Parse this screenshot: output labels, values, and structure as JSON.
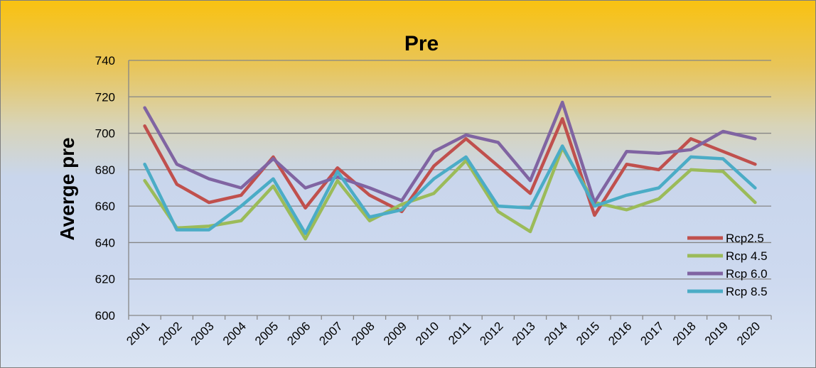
{
  "chart_data": {
    "type": "line",
    "title": "Pre",
    "xlabel": "",
    "ylabel": "Averge pre",
    "ylim": [
      600,
      740
    ],
    "yticks": [
      "600",
      "620",
      "640",
      "660",
      "680",
      "700",
      "720",
      "740"
    ],
    "grid": true,
    "legend": "bottom-right",
    "categories": [
      "2001",
      "2002",
      "2003",
      "2004",
      "2005",
      "2006",
      "2007",
      "2008",
      "2009",
      "2010",
      "2011",
      "2012",
      "2013",
      "2014",
      "2015",
      "2016",
      "2017",
      "2018",
      "2019",
      "2020"
    ],
    "series": [
      {
        "name": "Rcp2.5",
        "color": "#c0504d",
        "values": [
          704,
          672,
          662,
          666,
          687,
          659,
          681,
          666,
          657,
          682,
          697,
          682,
          667,
          708,
          655,
          683,
          680,
          697,
          690,
          683
        ]
      },
      {
        "name": "Rcp 4.5",
        "color": "#9bbb59",
        "values": [
          674,
          648,
          649,
          652,
          671,
          642,
          674,
          652,
          661,
          667,
          685,
          657,
          646,
          692,
          662,
          658,
          664,
          680,
          679,
          662
        ]
      },
      {
        "name": "Rcp 6.0",
        "color": "#8064a2",
        "values": [
          714,
          683,
          675,
          670,
          686,
          670,
          676,
          670,
          663,
          690,
          699,
          695,
          674,
          717,
          662,
          690,
          689,
          691,
          701,
          697
        ]
      },
      {
        "name": "Rcp 8.5",
        "color": "#4bacc6",
        "values": [
          683,
          647,
          647,
          660,
          675,
          645,
          679,
          654,
          658,
          675,
          687,
          660,
          659,
          693,
          660,
          666,
          670,
          687,
          686,
          670
        ]
      }
    ]
  }
}
